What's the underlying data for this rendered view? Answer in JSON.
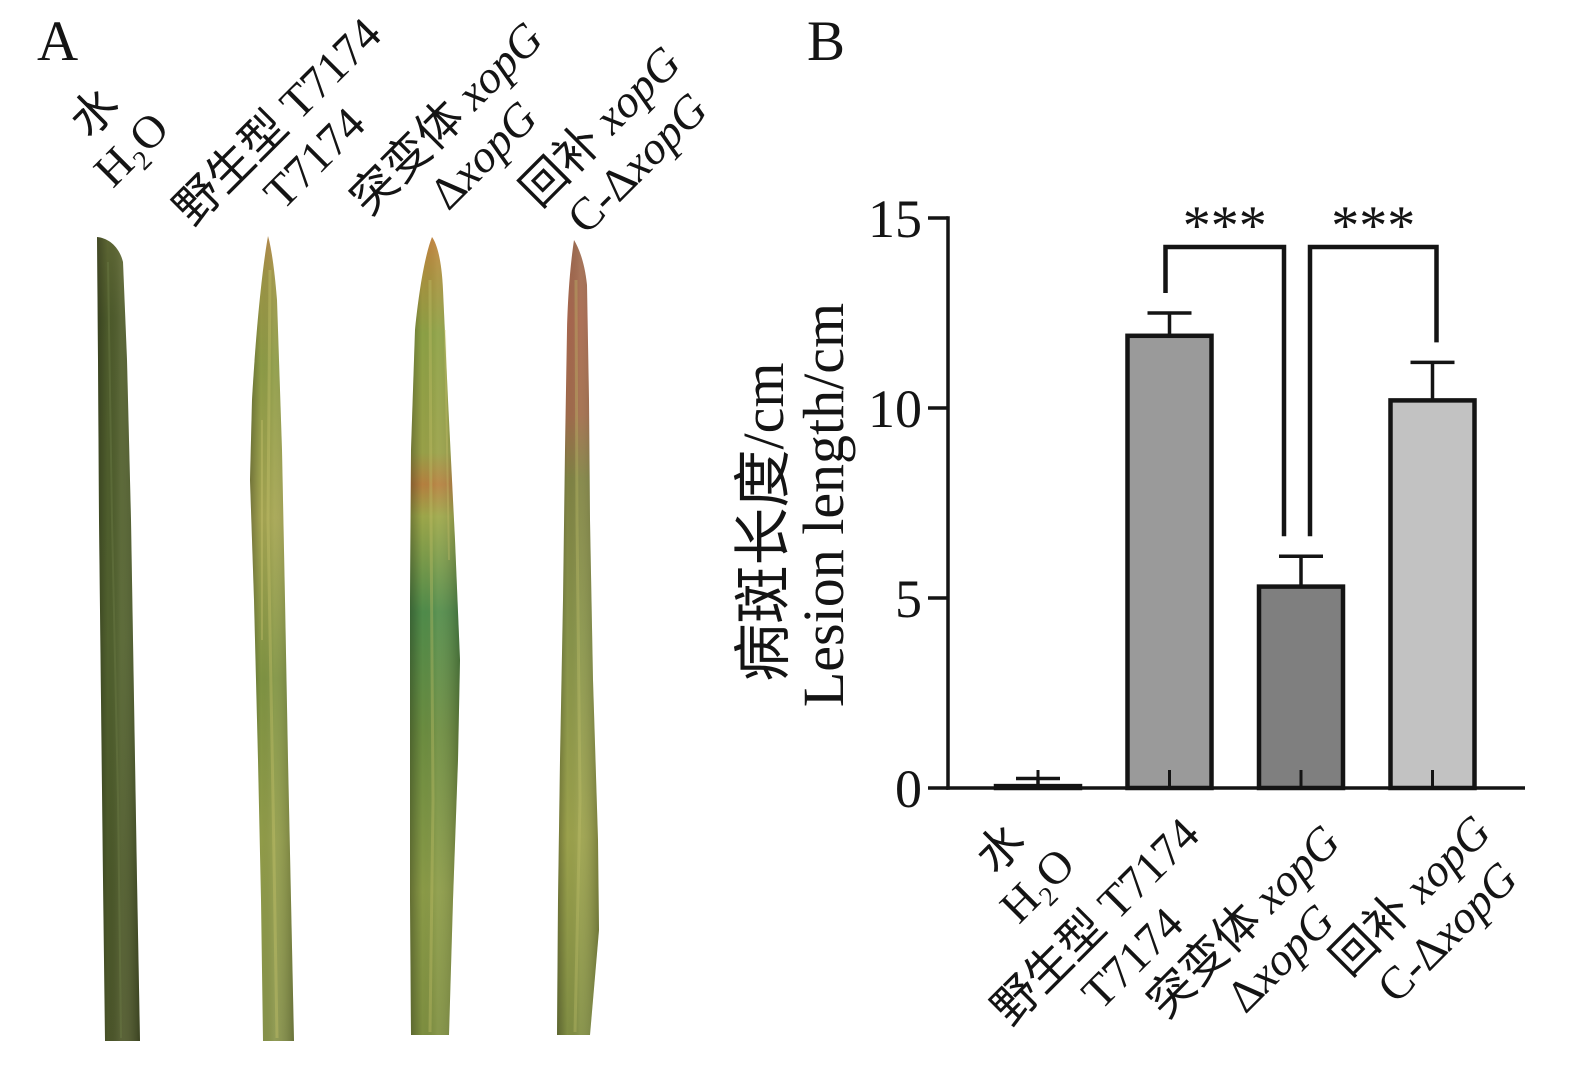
{
  "panels": {
    "a": {
      "label": "A"
    },
    "b": {
      "label": "B"
    }
  },
  "chart_data": {
    "type": "bar",
    "categories": [
      {
        "line1": {
          "text": "水"
        },
        "line2": {
          "text": "H₂O"
        }
      },
      {
        "line1": {
          "text": "野生型 T7174"
        },
        "line2": {
          "text": "T7174"
        }
      },
      {
        "line1": {
          "text": "突变体 ",
          "gene": "xopG"
        },
        "line2": {
          "text": "Δ",
          "gene": "xopG"
        }
      },
      {
        "line1": {
          "text": "回补 ",
          "gene": "xopG"
        },
        "line2": {
          "text": "C-Δ",
          "gene": "xopG"
        }
      }
    ],
    "values": [
      0.05,
      11.9,
      5.3,
      10.2
    ],
    "error": [
      0.2,
      0.6,
      0.8,
      1.0
    ],
    "ylabel": [
      "病斑长度/cm",
      "Lesion length/cm"
    ],
    "ylim": [
      0,
      15
    ],
    "yticks": [
      0,
      5,
      10,
      15
    ],
    "bar_colors": [
      "#ffffff",
      "#9a9a9a",
      "#7f7f7f",
      "#c2c2c2"
    ],
    "significance": [
      {
        "from": 1,
        "to": 2,
        "label": "***"
      },
      {
        "from": 2,
        "to": 3,
        "label": "***"
      }
    ],
    "grid": false,
    "legend": "none"
  }
}
